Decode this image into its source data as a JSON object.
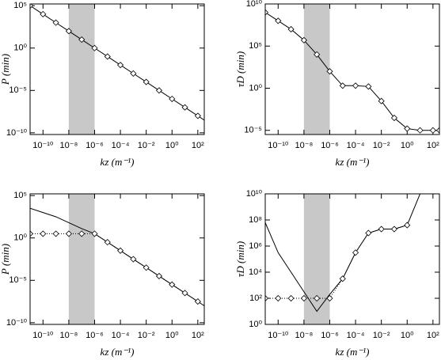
{
  "chart_data": [
    {
      "type": "line",
      "xscale": "log",
      "yscale": "log",
      "xlabel": "kz (m⁻¹)",
      "ylabel": "P (min)",
      "xlim": [
        1e-11,
        316.2
      ],
      "ylim": [
        6.3e-11,
        160000
      ],
      "xticks": [
        {
          "value": 1e-10,
          "label": "10⁻¹⁰"
        },
        {
          "value": 1e-08,
          "label": "10⁻⁸"
        },
        {
          "value": 1e-06,
          "label": "10⁻⁶"
        },
        {
          "value": 0.0001,
          "label": "10⁻⁴"
        },
        {
          "value": 0.01,
          "label": "10⁻²"
        },
        {
          "value": 1,
          "label": "10⁰"
        },
        {
          "value": 100,
          "label": "10²"
        }
      ],
      "yticks": [
        {
          "value": 1e-10,
          "label": "10⁻¹⁰"
        },
        {
          "value": 1e-05,
          "label": "10⁻⁵"
        },
        {
          "value": 1,
          "label": "10⁰"
        },
        {
          "value": 100000,
          "label": "10⁵"
        }
      ],
      "band": [
        1e-08,
        1e-06
      ],
      "band_color": "#c8c8c8",
      "x": [
        1e-11,
        1e-10,
        1e-09,
        1e-08,
        1e-07,
        1e-06,
        1e-05,
        0.0001,
        0.001,
        0.01,
        0.1,
        1,
        10,
        100,
        316.2
      ],
      "series": [
        {
          "style": "line",
          "color": "#000000",
          "values": [
            100000,
            10000,
            1000,
            100,
            10,
            1,
            0.1,
            0.01,
            0.001,
            0.0001,
            1e-05,
            1e-06,
            1e-07,
            1e-08,
            3.16e-09
          ]
        },
        {
          "style": "markers",
          "color": "#000000",
          "values": [
            100000,
            10000,
            1000,
            100,
            10,
            1,
            0.1,
            0.01,
            0.001,
            0.0001,
            1e-05,
            1e-06,
            1e-07,
            1e-08,
            null
          ]
        }
      ]
    },
    {
      "type": "line",
      "xscale": "log",
      "yscale": "log",
      "xlabel": "kz (m⁻¹)",
      "ylabel": "τD (min)",
      "xlim": [
        1e-11,
        316.2
      ],
      "ylim": [
        3.2e-06,
        10000000000
      ],
      "xticks": [
        {
          "value": 1e-10,
          "label": "10⁻¹⁰"
        },
        {
          "value": 1e-08,
          "label": "10⁻⁸"
        },
        {
          "value": 1e-06,
          "label": "10⁻⁶"
        },
        {
          "value": 0.0001,
          "label": "10⁻⁴"
        },
        {
          "value": 0.01,
          "label": "10⁻²"
        },
        {
          "value": 1,
          "label": "10⁰"
        },
        {
          "value": 100,
          "label": "10²"
        }
      ],
      "yticks": [
        {
          "value": 1e-05,
          "label": "10⁻⁵"
        },
        {
          "value": 1,
          "label": "10⁰"
        },
        {
          "value": 100000,
          "label": "10⁵"
        },
        {
          "value": 10000000000,
          "label": "10¹⁰"
        }
      ],
      "band": [
        1e-08,
        1e-06
      ],
      "band_color": "#c8c8c8",
      "x": [
        1e-11,
        1e-10,
        1e-09,
        1e-08,
        1e-07,
        1e-06,
        1e-05,
        0.0001,
        0.001,
        0.01,
        0.1,
        1,
        10,
        100,
        316.2
      ],
      "series": [
        {
          "style": "line",
          "color": "#000000",
          "values": [
            1000000000,
            100000000,
            10000000,
            500000,
            10000,
            100,
            2,
            2,
            1.6,
            0.03,
            0.0003,
            1.6e-05,
            1e-05,
            1e-05,
            1e-05
          ]
        },
        {
          "style": "markers",
          "color": "#000000",
          "values": [
            1000000000,
            100000000,
            10000000,
            500000,
            10000,
            100,
            2,
            2,
            1.6,
            0.03,
            0.0003,
            1.6e-05,
            1e-05,
            1e-05,
            1e-05
          ]
        }
      ]
    },
    {
      "type": "line",
      "xscale": "log",
      "yscale": "log",
      "xlabel": "kz (m⁻¹)",
      "ylabel": "P (min)",
      "xlim": [
        1e-11,
        316.2
      ],
      "ylim": [
        6.3e-11,
        160000
      ],
      "xticks": [
        {
          "value": 1e-10,
          "label": "10⁻¹⁰"
        },
        {
          "value": 1e-08,
          "label": "10⁻⁸"
        },
        {
          "value": 1e-06,
          "label": "10⁻⁶"
        },
        {
          "value": 0.0001,
          "label": "10⁻⁴"
        },
        {
          "value": 0.01,
          "label": "10⁻²"
        },
        {
          "value": 1,
          "label": "10⁰"
        },
        {
          "value": 100,
          "label": "10²"
        }
      ],
      "yticks": [
        {
          "value": 1e-10,
          "label": "10⁻¹⁰"
        },
        {
          "value": 1e-05,
          "label": "10⁻⁵"
        },
        {
          "value": 1,
          "label": "10⁰"
        },
        {
          "value": 100000,
          "label": "10⁵"
        }
      ],
      "band": [
        1e-08,
        1e-06
      ],
      "band_color": "#c8c8c8",
      "x": [
        1e-11,
        1e-10,
        1e-09,
        1e-08,
        1e-07,
        1e-06,
        1e-05,
        0.0001,
        0.001,
        0.01,
        0.1,
        1,
        10,
        100,
        316.2
      ],
      "series": [
        {
          "style": "line",
          "color": "#000000",
          "values": [
            3162,
            1000,
            316,
            63,
            12.6,
            3.16,
            0.316,
            0.0316,
            0.00316,
            0.000316,
            3.16e-05,
            3.16e-06,
            3.16e-07,
            3.16e-08,
            1e-08
          ]
        },
        {
          "style": "markers",
          "linestyle": "dotted",
          "color": "#000000",
          "values": [
            3.16,
            3.16,
            3.16,
            3.16,
            3.16,
            3.16,
            0.316,
            0.0316,
            0.00316,
            0.000316,
            3.16e-05,
            3.16e-06,
            3.16e-07,
            3.16e-08,
            null
          ]
        }
      ]
    },
    {
      "type": "line",
      "xscale": "log",
      "yscale": "log",
      "xlabel": "kz (m⁻¹)",
      "ylabel": "τD (min)",
      "xlim": [
        1e-11,
        316.2
      ],
      "ylim": [
        1,
        10000000000
      ],
      "xticks": [
        {
          "value": 1e-10,
          "label": "10⁻¹⁰"
        },
        {
          "value": 1e-08,
          "label": "10⁻⁸"
        },
        {
          "value": 1e-06,
          "label": "10⁻⁶"
        },
        {
          "value": 0.0001,
          "label": "10⁻⁴"
        },
        {
          "value": 0.01,
          "label": "10⁻²"
        },
        {
          "value": 1,
          "label": "10⁰"
        },
        {
          "value": 100,
          "label": "10²"
        }
      ],
      "yticks": [
        {
          "value": 1,
          "label": "10⁰"
        },
        {
          "value": 100,
          "label": "10²"
        },
        {
          "value": 10000,
          "label": "10⁴"
        },
        {
          "value": 1000000,
          "label": "10⁶"
        },
        {
          "value": 100000000,
          "label": "10⁸"
        },
        {
          "value": 10000000000,
          "label": "10¹⁰"
        }
      ],
      "band": [
        1e-08,
        1e-06
      ],
      "band_color": "#c8c8c8",
      "x": [
        1e-11,
        1e-10,
        1e-09,
        1e-08,
        1e-07,
        1e-06,
        1e-05,
        0.0001,
        0.001,
        0.01,
        0.1,
        1,
        10,
        100,
        316.2
      ],
      "series": [
        {
          "style": "line",
          "color": "#000000",
          "values": [
            63000000,
            316000,
            10000,
            316,
            10,
            200,
            3162,
            316000,
            10000000,
            20000000,
            20000000,
            40000000,
            10000000000,
            null,
            null
          ]
        },
        {
          "style": "markers",
          "linestyle": "dotted",
          "color": "#000000",
          "values": [
            100,
            100,
            100,
            100,
            100,
            100,
            3162,
            316000,
            10000000,
            20000000,
            20000000,
            40000000,
            null,
            null,
            null
          ]
        }
      ]
    }
  ]
}
